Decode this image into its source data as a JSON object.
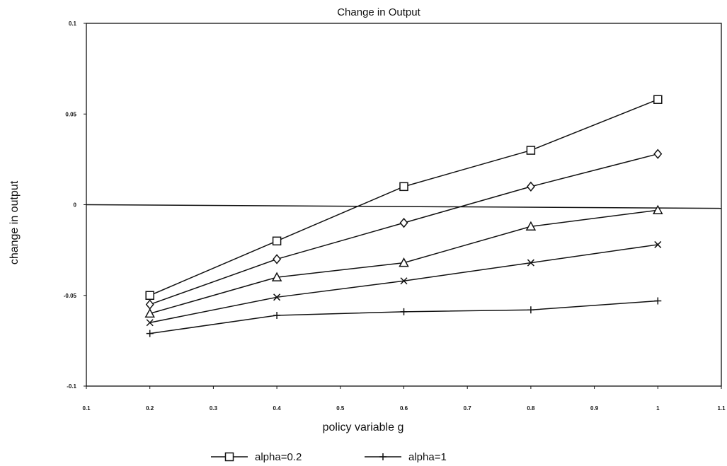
{
  "chart_data": {
    "type": "line",
    "title": "Change in Output",
    "xlabel": "policy variable g",
    "ylabel": "change in output",
    "xlim": [
      0.1,
      1.1
    ],
    "ylim": [
      -0.1,
      0.1
    ],
    "x_ticks": [
      "0.1",
      "0.2",
      "0.3",
      "0.4",
      "0.5",
      "0.6",
      "0.7",
      "0.8",
      "0.9",
      "1",
      "1.1"
    ],
    "y_ticks": [
      "0.1",
      "0.05",
      "0",
      "-0.05",
      "-0.1"
    ],
    "grid": false,
    "legend_position": "bottom",
    "x": [
      0.2,
      0.4,
      0.6,
      0.8,
      1.0
    ],
    "series": [
      {
        "name": "alpha=0.2",
        "marker": "square",
        "values": [
          -0.05,
          -0.02,
          0.01,
          0.03,
          0.058
        ]
      },
      {
        "name": "",
        "marker": "diamond",
        "values": [
          -0.055,
          -0.03,
          -0.01,
          0.01,
          0.028
        ]
      },
      {
        "name": "",
        "marker": "triangle",
        "values": [
          -0.06,
          -0.04,
          -0.032,
          -0.012,
          -0.003
        ]
      },
      {
        "name": "",
        "marker": "cross",
        "values": [
          -0.065,
          -0.051,
          -0.042,
          -0.032,
          -0.022
        ]
      },
      {
        "name": "alpha=1",
        "marker": "plus",
        "values": [
          -0.071,
          -0.061,
          -0.059,
          -0.058,
          -0.053
        ]
      }
    ],
    "zero_line": {
      "x": [
        0.1,
        1.1
      ],
      "y": [
        0.0,
        -0.002
      ]
    },
    "legend": [
      {
        "label": "alpha=0.2",
        "marker": "square"
      },
      {
        "label": "alpha=1",
        "marker": "plus"
      }
    ]
  }
}
